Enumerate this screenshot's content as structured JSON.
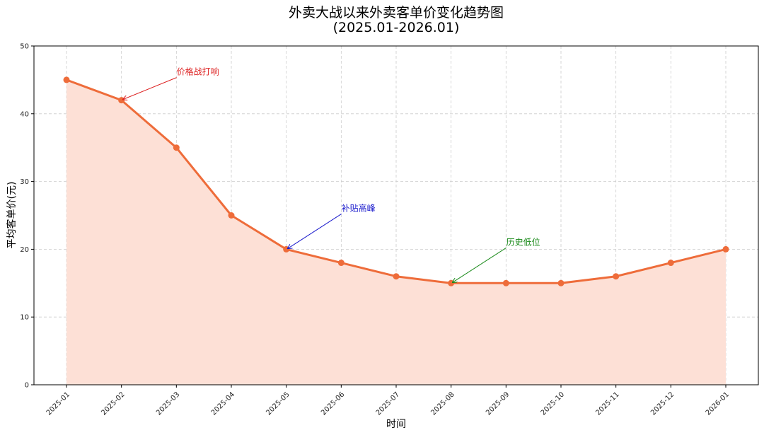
{
  "chart_data": {
    "type": "line",
    "title": "外卖大战以来外卖客单价变化趋势图",
    "subtitle": "(2025.01-2026.01)",
    "xlabel": "时间",
    "ylabel": "平均客单价(元)",
    "categories": [
      "2025-01",
      "2025-02",
      "2025-03",
      "2025-04",
      "2025-05",
      "2025-06",
      "2025-07",
      "2025-08",
      "2025-09",
      "2025-10",
      "2025-11",
      "2025-12",
      "2026-01"
    ],
    "values": [
      45,
      42,
      35,
      25,
      20,
      18,
      16,
      15,
      15,
      15,
      16,
      18,
      20
    ],
    "ylim": [
      0,
      50
    ],
    "yticks": [
      0,
      10,
      20,
      30,
      40,
      50
    ],
    "grid": true,
    "area_fill": true,
    "colors": {
      "line": "#ee6c3a",
      "fill": "#fde0d6",
      "grid": "#cccccc"
    },
    "annotations": [
      {
        "text": "价格战打响",
        "target_index": 1,
        "color": "#dd2222"
      },
      {
        "text": "补贴高峰",
        "target_index": 4,
        "color": "#1a1acc"
      },
      {
        "text": "历史低位",
        "target_index": 7,
        "color": "#1a8a1a"
      }
    ]
  }
}
